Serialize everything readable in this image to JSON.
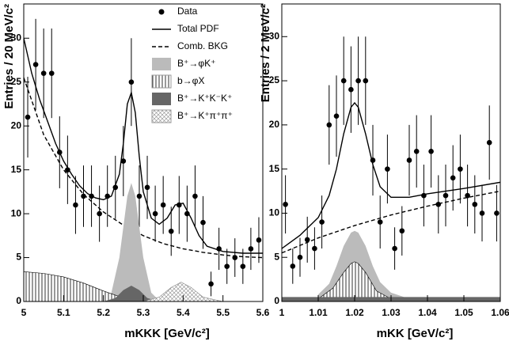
{
  "chart_data": [
    {
      "type": "line",
      "x_label": "mKKK [GeV/c²]",
      "y_label": "Entries / 20 MeV/c²",
      "xlim": [
        5,
        5.6
      ],
      "xticks": [
        5,
        5.1,
        5.2,
        5.3,
        5.4,
        5.5,
        5.6
      ],
      "ylim": [
        0,
        33.9
      ],
      "yticks": [
        0,
        5,
        10,
        15,
        20,
        25,
        30
      ],
      "legend": "upper right",
      "series": [
        {
          "name": "Data",
          "kind": "points",
          "color": "#000000",
          "x": [
            5.01,
            5.03,
            5.05,
            5.07,
            5.09,
            5.11,
            5.13,
            5.15,
            5.17,
            5.19,
            5.21,
            5.23,
            5.25,
            5.27,
            5.29,
            5.31,
            5.33,
            5.35,
            5.37,
            5.39,
            5.41,
            5.43,
            5.45,
            5.47,
            5.49,
            5.51,
            5.53,
            5.55,
            5.57,
            5.59
          ],
          "values": [
            21,
            27,
            26,
            26,
            17,
            15,
            11,
            12,
            12,
            10,
            12,
            13,
            16,
            25,
            12,
            13,
            10,
            11,
            8,
            11,
            10,
            12,
            9,
            2,
            6,
            4,
            5,
            4,
            6,
            7
          ],
          "errors": [
            4.6,
            5.2,
            5.1,
            5.1,
            4.1,
            3.9,
            3.3,
            3.5,
            3.5,
            3.2,
            3.5,
            3.6,
            4,
            5,
            3.5,
            3.6,
            3.2,
            3.3,
            2.8,
            3.3,
            3.2,
            3.5,
            3,
            1.4,
            2.4,
            2,
            2.2,
            2,
            2.4,
            2.6
          ]
        },
        {
          "name": "Total PDF",
          "kind": "line",
          "color": "#000000",
          "x": [
            5.0,
            5.02,
            5.04,
            5.06,
            5.08,
            5.1,
            5.12,
            5.14,
            5.16,
            5.18,
            5.2,
            5.22,
            5.24,
            5.25,
            5.26,
            5.27,
            5.28,
            5.29,
            5.3,
            5.32,
            5.34,
            5.36,
            5.38,
            5.4,
            5.42,
            5.44,
            5.46,
            5.5,
            5.55,
            5.6
          ],
          "values": [
            30,
            26,
            23,
            20.5,
            18,
            16,
            14.5,
            13.2,
            12.3,
            11.8,
            11.6,
            12,
            14.5,
            18,
            22.5,
            23.8,
            21.5,
            16.5,
            12.5,
            9.5,
            8.8,
            9.5,
            11,
            11.2,
            9.5,
            7.5,
            6.3,
            5.7,
            5.5,
            5.5
          ]
        },
        {
          "name": "Comb. BKG",
          "kind": "dashed",
          "color": "#000000",
          "x": [
            5.0,
            5.05,
            5.1,
            5.15,
            5.2,
            5.25,
            5.3,
            5.35,
            5.4,
            5.45,
            5.5,
            5.55,
            5.6
          ],
          "values": [
            25.5,
            19,
            15,
            12.2,
            10.2,
            8.7,
            7.5,
            6.6,
            6,
            5.6,
            5.3,
            5.1,
            5
          ]
        },
        {
          "name": "B⁺→φK⁺",
          "kind": "area",
          "color": "#bbbbbb",
          "x": [
            5.2,
            5.22,
            5.24,
            5.25,
            5.26,
            5.27,
            5.28,
            5.29,
            5.3,
            5.32,
            5.34
          ],
          "values": [
            0.1,
            1,
            5,
            8.5,
            12,
            13.5,
            12,
            8.5,
            5,
            1,
            0.1
          ]
        },
        {
          "name": "b→φX",
          "kind": "area",
          "pattern": "vhatch",
          "color": "#000000",
          "x": [
            5.0,
            5.05,
            5.1,
            5.15,
            5.2,
            5.25,
            5.3
          ],
          "values": [
            3.4,
            3.2,
            2.8,
            2.1,
            1.2,
            0.4,
            0
          ]
        },
        {
          "name": "B⁺→K⁺K⁻K⁺",
          "kind": "area",
          "color": "#666666",
          "x": [
            5.2,
            5.23,
            5.25,
            5.27,
            5.29,
            5.31,
            5.34
          ],
          "values": [
            0,
            0.4,
            1.3,
            1.8,
            1.3,
            0.4,
            0
          ]
        },
        {
          "name": "B⁺→K⁺π⁺π⁺",
          "kind": "area",
          "pattern": "xhatch",
          "color": "#888888",
          "x": [
            5.3,
            5.34,
            5.37,
            5.395,
            5.42,
            5.45,
            5.5
          ],
          "values": [
            0,
            0.5,
            1.6,
            2.2,
            1.6,
            0.5,
            0
          ]
        }
      ]
    },
    {
      "type": "line",
      "x_label": "mKK [GeV/c²]",
      "y_label": "Entries / 2 MeV/c²",
      "xlim": [
        1,
        1.06
      ],
      "xticks": [
        1,
        1.01,
        1.02,
        1.03,
        1.04,
        1.05,
        1.06
      ],
      "ylim": [
        0,
        33.7
      ],
      "yticks": [
        0,
        5,
        10,
        15,
        20,
        25,
        30
      ],
      "series": [
        {
          "kind": "area",
          "color": "#bbbbbb",
          "x": [
            1.01,
            1.013,
            1.015,
            1.017,
            1.019,
            1.02,
            1.021,
            1.023,
            1.025,
            1.027,
            1.03,
            1.035
          ],
          "values": [
            0.8,
            2,
            4,
            6.3,
            7.8,
            8,
            7.8,
            6.3,
            4,
            2.2,
            1,
            0.3
          ]
        },
        {
          "kind": "area",
          "pattern": "vhatch",
          "color": "#000000",
          "x": [
            1.01,
            1.014,
            1.017,
            1.019,
            1.02,
            1.021,
            1.023,
            1.026,
            1.03
          ],
          "values": [
            0.3,
            1.5,
            3.3,
            4.3,
            4.5,
            4.3,
            3.3,
            1.2,
            0.3
          ]
        },
        {
          "kind": "area",
          "color": "#666666",
          "x": [
            1.0,
            1.06
          ],
          "values": [
            0.5,
            0.5
          ]
        },
        {
          "kind": "dashed",
          "color": "#000000",
          "x": [
            1.0,
            1.01,
            1.02,
            1.03,
            1.04,
            1.05,
            1.06
          ],
          "values": [
            5.5,
            7.2,
            8.6,
            9.8,
            10.8,
            11.7,
            12.5
          ]
        },
        {
          "kind": "line",
          "color": "#000000",
          "x": [
            1.0,
            1.005,
            1.01,
            1.013,
            1.015,
            1.017,
            1.019,
            1.02,
            1.021,
            1.023,
            1.025,
            1.027,
            1.03,
            1.035,
            1.04,
            1.05,
            1.06
          ],
          "values": [
            6,
            7.5,
            9.5,
            12,
            15,
            19,
            22,
            22.5,
            22,
            19,
            15.5,
            13,
            11.8,
            11.8,
            12.2,
            12.8,
            13.5
          ]
        },
        {
          "kind": "points",
          "color": "#000000",
          "x": [
            1.001,
            1.003,
            1.005,
            1.007,
            1.009,
            1.011,
            1.013,
            1.015,
            1.017,
            1.019,
            1.021,
            1.023,
            1.025,
            1.027,
            1.029,
            1.031,
            1.033,
            1.035,
            1.037,
            1.039,
            1.041,
            1.043,
            1.045,
            1.047,
            1.049,
            1.051,
            1.053,
            1.055,
            1.057,
            1.059
          ],
          "values": [
            11,
            4,
            5,
            7,
            6,
            9,
            20,
            21,
            25,
            24,
            25,
            25,
            16,
            9,
            15,
            6,
            8,
            16,
            17,
            12,
            17,
            11,
            12,
            14,
            15,
            12,
            11,
            10,
            18,
            10
          ],
          "errors": [
            3.3,
            2,
            2.2,
            2.6,
            2.4,
            3,
            4.5,
            4.6,
            5,
            4.9,
            5,
            5,
            4,
            3,
            3.9,
            2.4,
            2.8,
            4,
            4.1,
            3.5,
            4.1,
            3.3,
            3.5,
            3.7,
            3.9,
            3.5,
            3.3,
            3.2,
            4.2,
            3.2
          ]
        }
      ]
    }
  ]
}
